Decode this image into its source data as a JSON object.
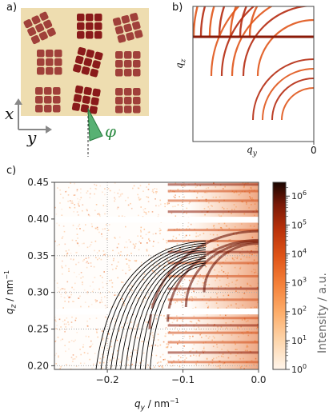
{
  "panel_a": {
    "label": "a)",
    "axis_x": "x",
    "axis_y": "y",
    "angle": "φ",
    "colors": {
      "background": "#EEDDB0",
      "block_light": "#A0403A",
      "block_dark": "#8A1A1A",
      "wedge": "#3AA35A"
    }
  },
  "panel_b": {
    "label": "b)",
    "ylabel": "q",
    "ylabel_sub": "z",
    "xlabel": "q",
    "xlabel_sub": "y",
    "xtick": "0"
  },
  "panel_c": {
    "label": "c)",
    "colorbar_label": "Intensity / a.u.",
    "colorbar_ticks": [
      "10^0",
      "10^1",
      "10^2",
      "10^3",
      "10^4",
      "10^5",
      "10^6"
    ]
  },
  "chart_data": {
    "type": "heatmap",
    "xlabel": "q_y / nm^-1",
    "ylabel": "q_z / nm^-1",
    "xlim": [
      -0.27,
      0.0
    ],
    "ylim": [
      0.195,
      0.45
    ],
    "xticks": [
      -0.2,
      -0.1,
      0.0
    ],
    "xtick_labels": [
      "−0.2",
      "−0.1",
      "0.0"
    ],
    "yticks": [
      0.2,
      0.25,
      0.3,
      0.35,
      0.4,
      0.45
    ],
    "ytick_labels": [
      "0.20",
      "0.25",
      "0.30",
      "0.35",
      "0.40",
      "0.45"
    ],
    "gaps_qz": [
      [
        0.27,
        0.278
      ],
      [
        0.395,
        0.403
      ]
    ],
    "grid": true,
    "colorbar": {
      "scale": "log",
      "range": [
        1,
        3000000
      ]
    }
  }
}
